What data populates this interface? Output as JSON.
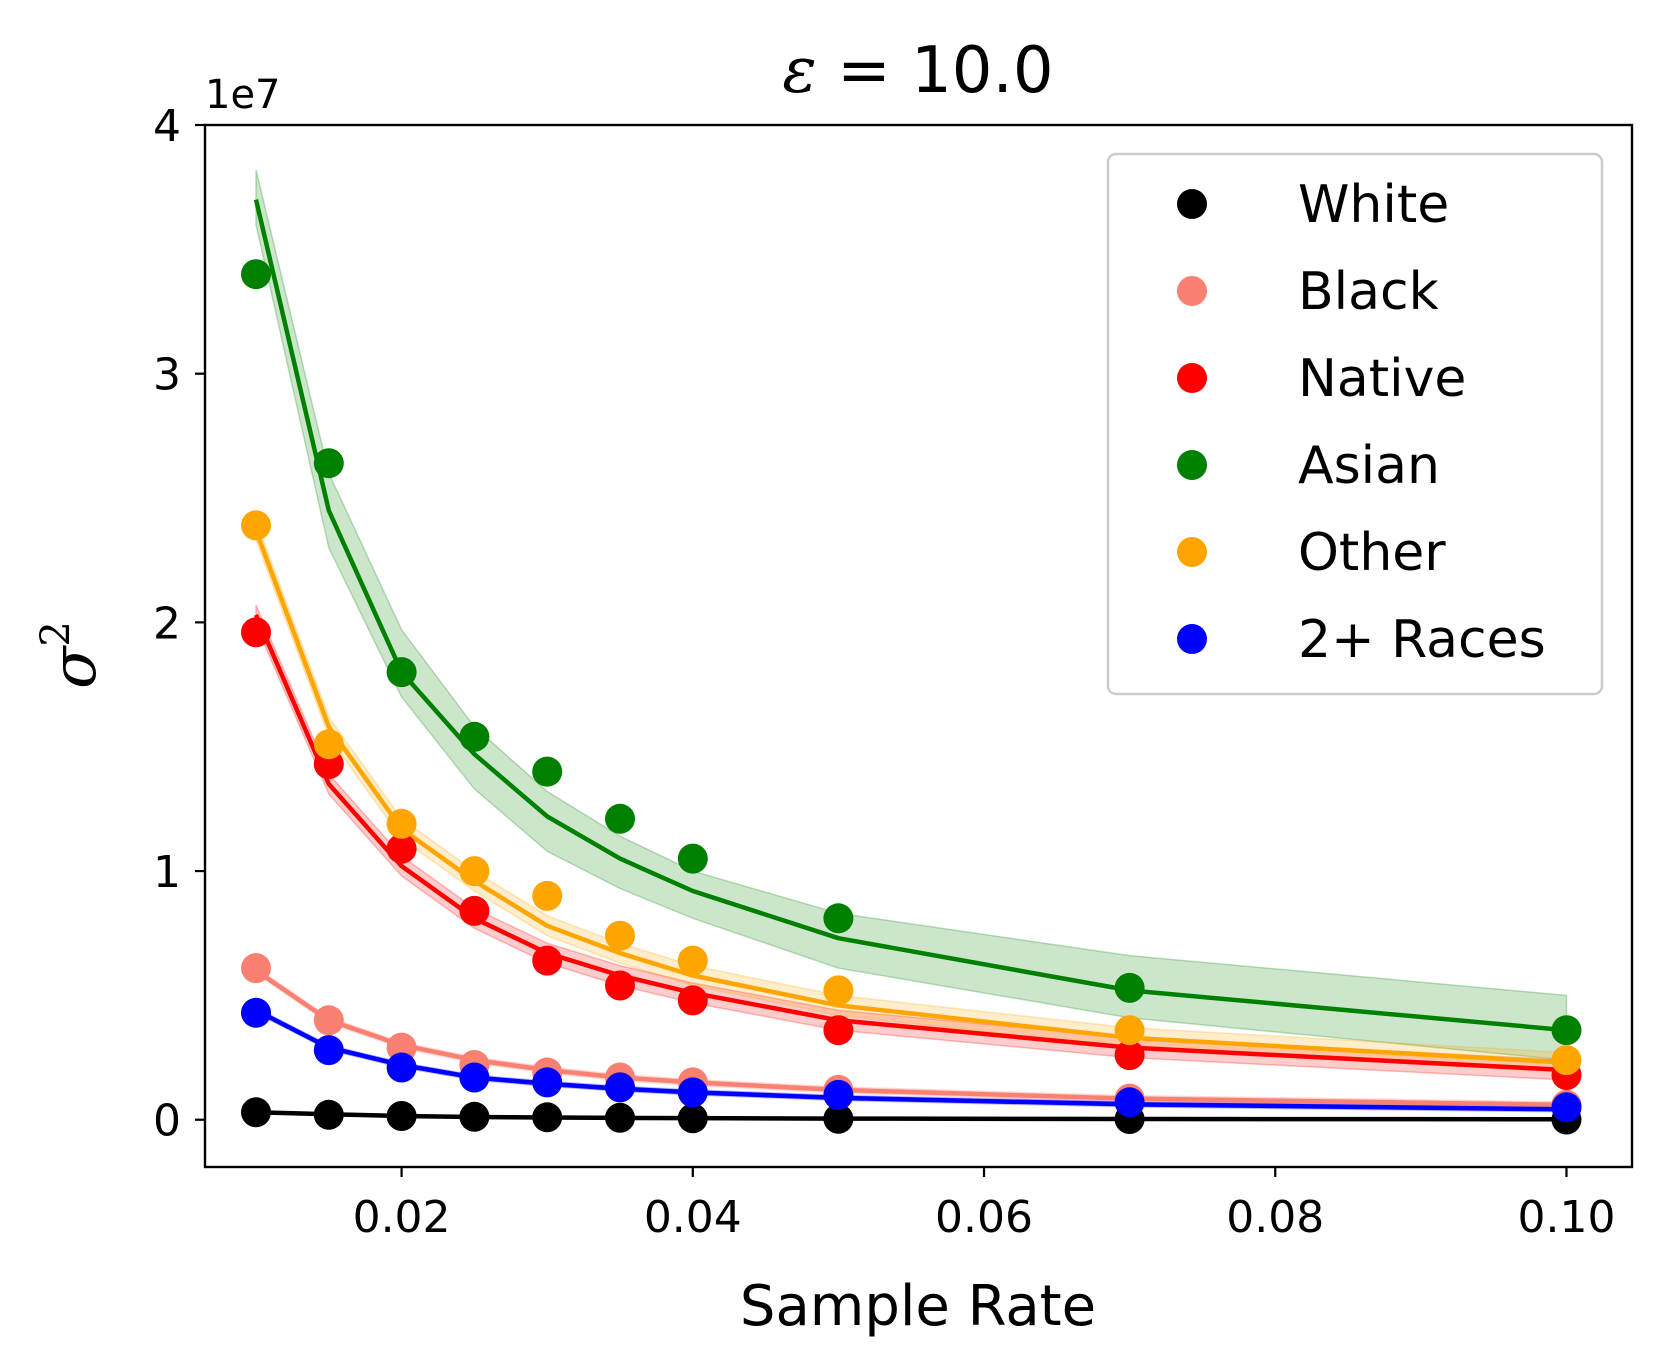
{
  "chart_data": {
    "type": "line",
    "title": "ε = 10.0",
    "title_symbol": "ε",
    "title_rest": " = 10.0",
    "xlabel": "Sample Rate",
    "ylabel_base": "σ",
    "ylabel_sup": "2",
    "y_offset_text": "1e7",
    "xlim": [
      0.0065,
      0.1045
    ],
    "ylim": [
      -1900000,
      40000000
    ],
    "x_ticks": [
      0.02,
      0.04,
      0.06,
      0.08,
      0.1
    ],
    "x_tick_labels": [
      "0.02",
      "0.04",
      "0.06",
      "0.08",
      "0.10"
    ],
    "y_ticks": [
      0,
      10000000,
      20000000,
      30000000,
      40000000
    ],
    "y_tick_labels": [
      "0",
      "1",
      "2",
      "3",
      "4"
    ],
    "grid": false,
    "legend_position": "top-right",
    "x": [
      0.01,
      0.015,
      0.02,
      0.025,
      0.03,
      0.035,
      0.04,
      0.05,
      0.07,
      0.1
    ],
    "series": [
      {
        "name": "White",
        "color": "#000000",
        "line": [
          300000,
          220000,
          150000,
          110000,
          90000,
          75000,
          65000,
          45000,
          30000,
          20000
        ],
        "band": 30000,
        "points": [
          300000,
          200000,
          150000,
          120000,
          100000,
          80000,
          60000,
          40000,
          30000,
          10000
        ]
      },
      {
        "name": "Black",
        "color": "#fa8072",
        "line": [
          6000000,
          4000000,
          3000000,
          2400000,
          2000000,
          1700000,
          1500000,
          1200000,
          850000,
          600000
        ],
        "band": 120000,
        "points": [
          6100000,
          4000000,
          2900000,
          2200000,
          1900000,
          1700000,
          1500000,
          1200000,
          850000,
          600000
        ]
      },
      {
        "name": "Native",
        "color": "#ff0000",
        "line": [
          20300000,
          13500000,
          10200000,
          8100000,
          6700000,
          5800000,
          5100000,
          4000000,
          2900000,
          2000000
        ],
        "band": 400000,
        "points": [
          19600000,
          14300000,
          10900000,
          8400000,
          6400000,
          5400000,
          4800000,
          3600000,
          2600000,
          1800000
        ]
      },
      {
        "name": "Asian",
        "color": "#008000",
        "line": [
          37000000,
          24500000,
          18000000,
          14700000,
          12200000,
          10500000,
          9200000,
          7300000,
          5200000,
          3600000
        ],
        "band_lower": [
          36000000,
          23000000,
          17000000,
          13300000,
          10800000,
          9300000,
          8100000,
          6100000,
          4100000,
          2400000
        ],
        "band_upper": [
          38200000,
          26000000,
          19700000,
          15800000,
          13200000,
          11400000,
          10000000,
          8300000,
          6600000,
          5000000
        ],
        "points": [
          34000000,
          26400000,
          18000000,
          15400000,
          14000000,
          12100000,
          10500000,
          8100000,
          5300000,
          3600000
        ]
      },
      {
        "name": "Other",
        "color": "#ffa500",
        "line": [
          23700000,
          15800000,
          11700000,
          9600000,
          7800000,
          6700000,
          5800000,
          4600000,
          3300000,
          2300000
        ],
        "band": 400000,
        "points": [
          23900000,
          15100000,
          11900000,
          10000000,
          9000000,
          7400000,
          6400000,
          5200000,
          3600000,
          2400000
        ]
      },
      {
        "name": "2+ Races",
        "color": "#0000ff",
        "line": [
          4400000,
          2900000,
          2200000,
          1700000,
          1450000,
          1250000,
          1100000,
          880000,
          620000,
          420000
        ],
        "band": 100000,
        "points": [
          4300000,
          2800000,
          2100000,
          1700000,
          1500000,
          1300000,
          1100000,
          1000000,
          700000,
          500000
        ]
      }
    ]
  }
}
